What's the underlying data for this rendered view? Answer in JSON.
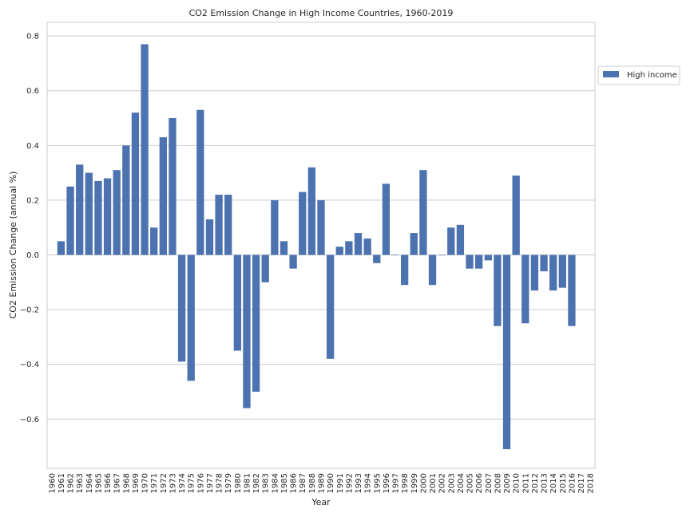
{
  "chart_data": {
    "type": "bar",
    "title": "CO2 Emission Change in High Income Countries, 1960-2019",
    "xlabel": "Year",
    "ylabel": "CO2 Emission Change (annual %)",
    "ylim": [
      -0.78,
      0.85
    ],
    "yticks": [
      -0.6,
      -0.4,
      -0.2,
      0.0,
      0.2,
      0.4,
      0.6,
      0.8
    ],
    "ytick_labels": [
      "−0.6",
      "−0.4",
      "−0.2",
      "0.0",
      "0.2",
      "0.4",
      "0.6",
      "0.8"
    ],
    "grid": "horizontal",
    "legend_position": "outside-right",
    "categories": [
      "1960",
      "1961",
      "1962",
      "1963",
      "1964",
      "1965",
      "1966",
      "1967",
      "1968",
      "1969",
      "1970",
      "1971",
      "1972",
      "1973",
      "1974",
      "1975",
      "1976",
      "1977",
      "1978",
      "1979",
      "1980",
      "1981",
      "1982",
      "1983",
      "1984",
      "1985",
      "1986",
      "1987",
      "1988",
      "1989",
      "1990",
      "1991",
      "1992",
      "1993",
      "1994",
      "1995",
      "1996",
      "1997",
      "1998",
      "1999",
      "2000",
      "2001",
      "2002",
      "2003",
      "2004",
      "2005",
      "2006",
      "2007",
      "2008",
      "2009",
      "2010",
      "2011",
      "2012",
      "2013",
      "2014",
      "2015",
      "2016",
      "2017",
      "2018"
    ],
    "series": [
      {
        "name": "High income",
        "color": "#4c72b0",
        "values": [
          null,
          0.05,
          0.25,
          0.33,
          0.3,
          0.27,
          0.28,
          0.31,
          0.4,
          0.52,
          0.77,
          0.1,
          0.43,
          0.5,
          -0.39,
          -0.46,
          0.53,
          0.13,
          0.22,
          0.22,
          -0.35,
          -0.56,
          -0.5,
          -0.1,
          0.2,
          0.05,
          -0.05,
          0.23,
          0.32,
          0.2,
          -0.38,
          0.03,
          0.05,
          0.08,
          0.06,
          -0.03,
          0.26,
          0.0,
          -0.11,
          0.08,
          0.31,
          -0.11,
          0.0,
          0.1,
          0.11,
          -0.05,
          -0.05,
          -0.02,
          -0.26,
          -0.71,
          0.29,
          -0.25,
          -0.13,
          -0.06,
          -0.13,
          -0.12,
          -0.26,
          null,
          null
        ]
      }
    ]
  }
}
